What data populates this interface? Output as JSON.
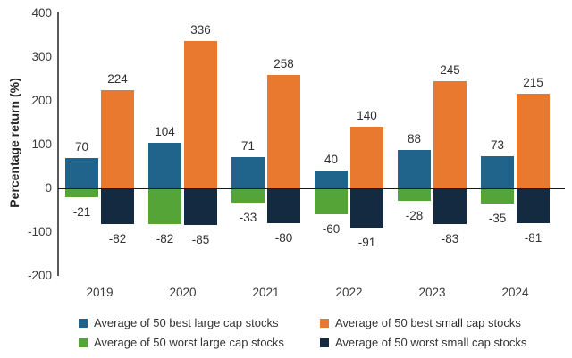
{
  "chart_data": {
    "type": "bar",
    "title": "",
    "ylabel": "Percentage return (%)",
    "xlabel": "",
    "ylim": [
      -200,
      400
    ],
    "yticks": [
      400,
      300,
      200,
      100,
      0,
      -100,
      -200
    ],
    "grid": false,
    "legend_position": "bottom",
    "categories": [
      "2019",
      "2020",
      "2021",
      "2022",
      "2023",
      "2024"
    ],
    "series": [
      {
        "name": "Average of 50 best large cap stocks",
        "color": "#20648C",
        "values": [
          70,
          104,
          71,
          40,
          88,
          73
        ]
      },
      {
        "name": "Average of 50 best small cap stocks",
        "color": "#E8792F",
        "values": [
          224,
          336,
          258,
          140,
          245,
          215
        ]
      },
      {
        "name": "Average of 50 worst large cap stocks",
        "color": "#55A438",
        "values": [
          -21,
          -82,
          -33,
          -60,
          -28,
          -35
        ]
      },
      {
        "name": "Average of 50 worst small cap stocks",
        "color": "#132A40",
        "values": [
          -82,
          -85,
          -80,
          -91,
          -83,
          -81
        ]
      }
    ],
    "colors": {
      "axis_line": "#595959",
      "zero_line": "#1a1a1a",
      "text": "#3b3b3b"
    }
  }
}
